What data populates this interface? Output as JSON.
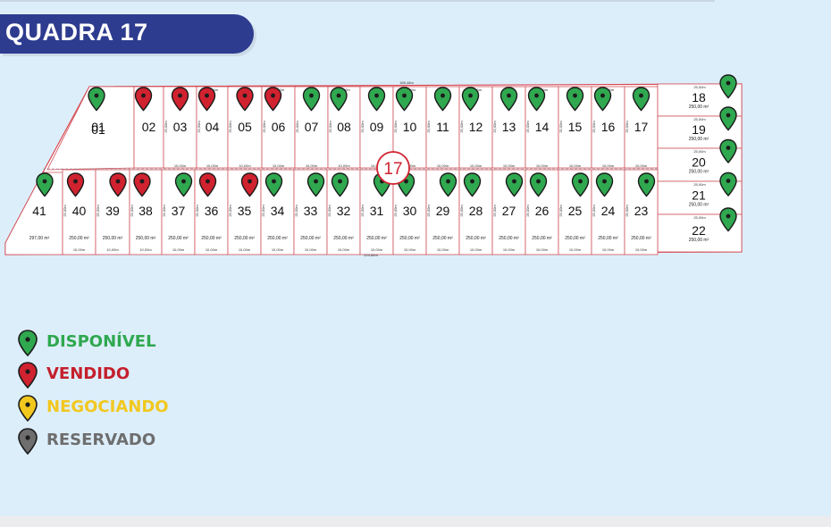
{
  "title": "QUADRA 17",
  "block_number": "17",
  "colors": {
    "disponivel": "#2fa84f",
    "vendido": "#d0222f",
    "negociando": "#f2c81e",
    "reservado": "#6e6e6e",
    "banner": "#2e3c8f",
    "boundary": "#d9474f"
  },
  "legend": [
    {
      "key": "disponivel",
      "label": "DISPONÍVEL",
      "color": "#2fa84f"
    },
    {
      "key": "vendido",
      "label": "VENDIDO",
      "color": "#c51f2c"
    },
    {
      "key": "negociando",
      "label": "NEGOCIANDO",
      "color": "#f2c81e"
    },
    {
      "key": "reservado",
      "label": "RESERVADO",
      "color": "#6e6e6e"
    }
  ],
  "top_lots": [
    {
      "number": "01",
      "status": "disponivel"
    },
    {
      "number": "02",
      "status": "vendido"
    },
    {
      "number": "03",
      "status": "vendido"
    },
    {
      "number": "04",
      "status": "vendido"
    },
    {
      "number": "05",
      "status": "vendido"
    },
    {
      "number": "06",
      "status": "vendido"
    },
    {
      "number": "07",
      "status": "disponivel"
    },
    {
      "number": "08",
      "status": "disponivel"
    },
    {
      "number": "09",
      "status": "disponivel"
    },
    {
      "number": "10",
      "status": "disponivel"
    },
    {
      "number": "11",
      "status": "disponivel"
    },
    {
      "number": "12",
      "status": "disponivel"
    },
    {
      "number": "13",
      "status": "disponivel"
    },
    {
      "number": "14",
      "status": "disponivel"
    },
    {
      "number": "15",
      "status": "disponivel"
    },
    {
      "number": "16",
      "status": "disponivel"
    },
    {
      "number": "17",
      "status": "disponivel"
    }
  ],
  "bottom_lots": [
    {
      "number": "41",
      "area": "297,00 m²",
      "status": "disponivel"
    },
    {
      "number": "40",
      "area": "250,00 m²",
      "status": "vendido"
    },
    {
      "number": "39",
      "area": "250,00 m²",
      "status": "vendido"
    },
    {
      "number": "38",
      "area": "250,00 m²",
      "status": "vendido"
    },
    {
      "number": "37",
      "area": "250,00 m²",
      "status": "disponivel"
    },
    {
      "number": "36",
      "area": "250,00 m²",
      "status": "vendido"
    },
    {
      "number": "35",
      "area": "250,00 m²",
      "status": "vendido"
    },
    {
      "number": "34",
      "area": "250,00 m²",
      "status": "disponivel"
    },
    {
      "number": "33",
      "area": "250,00 m²",
      "status": "disponivel"
    },
    {
      "number": "32",
      "area": "250,00 m²",
      "status": "disponivel"
    },
    {
      "number": "31",
      "area": "250,00 m²",
      "status": "disponivel"
    },
    {
      "number": "30",
      "area": "250,00 m²",
      "status": "disponivel"
    },
    {
      "number": "29",
      "area": "250,00 m²",
      "status": "disponivel"
    },
    {
      "number": "28",
      "area": "250,00 m²",
      "status": "disponivel"
    },
    {
      "number": "27",
      "area": "250,00 m²",
      "status": "disponivel"
    },
    {
      "number": "26",
      "area": "250,00 m²",
      "status": "disponivel"
    },
    {
      "number": "25",
      "area": "250,00 m²",
      "status": "disponivel"
    },
    {
      "number": "24",
      "area": "250,00 m²",
      "status": "disponivel"
    },
    {
      "number": "23",
      "area": "250,00 m²",
      "status": "disponivel"
    }
  ],
  "right_lots": [
    {
      "number": "18",
      "area": "250,00 m²",
      "status": "disponivel"
    },
    {
      "number": "19",
      "area": "250,00 m²",
      "status": "disponivel"
    },
    {
      "number": "20",
      "area": "250,00 m²",
      "status": "disponivel"
    },
    {
      "number": "21",
      "area": "250,00 m²",
      "status": "disponivel"
    },
    {
      "number": "22",
      "area": "250,00 m²",
      "status": "disponivel"
    }
  ],
  "dimension_labels": {
    "top_frontage": "10,00m",
    "bottom_frontage": "10,00m",
    "side_depth": "25,00m",
    "right_width": "25,00m",
    "top_total": "185,48m",
    "bottom_total": "223,66m"
  }
}
